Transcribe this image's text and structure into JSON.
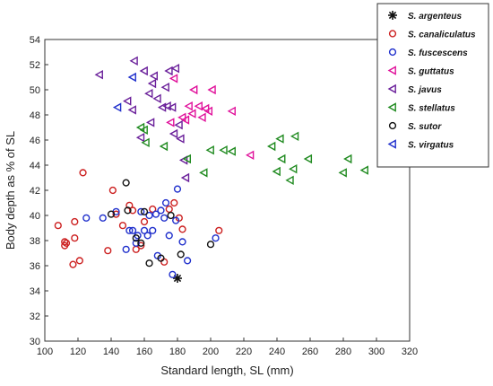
{
  "chart_data": {
    "type": "scatter",
    "title": "",
    "xlabel": "Standard length, SL (mm)",
    "ylabel": "Body depth as % of SL",
    "xlim": [
      100,
      320
    ],
    "ylim": [
      30,
      54
    ],
    "xticks": [
      100,
      120,
      140,
      160,
      180,
      200,
      220,
      240,
      260,
      280,
      300,
      320
    ],
    "yticks": [
      30,
      32,
      34,
      36,
      38,
      40,
      42,
      44,
      46,
      48,
      50,
      52,
      54
    ],
    "grid": false,
    "legend_position": "top-right",
    "series": [
      {
        "name": "S. argenteus",
        "marker": "asterisk",
        "color": "#111111",
        "points": [
          [
            180,
            35.0
          ]
        ]
      },
      {
        "name": "S. canaliculatus",
        "marker": "circle",
        "color": "#cc1f1f",
        "points": [
          [
            108,
            39.2
          ],
          [
            112,
            37.9
          ],
          [
            112,
            37.6
          ],
          [
            113,
            37.8
          ],
          [
            117,
            36.1
          ],
          [
            118,
            38.2
          ],
          [
            118,
            39.5
          ],
          [
            121,
            36.4
          ],
          [
            123,
            43.4
          ],
          [
            138,
            37.2
          ],
          [
            141,
            42.0
          ],
          [
            143,
            40.1
          ],
          [
            147,
            39.2
          ],
          [
            151,
            40.8
          ],
          [
            153,
            40.4
          ],
          [
            155,
            37.3
          ],
          [
            158,
            37.6
          ],
          [
            160,
            39.5
          ],
          [
            165,
            40.5
          ],
          [
            172,
            36.3
          ],
          [
            175,
            40.5
          ],
          [
            178,
            41.0
          ],
          [
            181,
            39.8
          ],
          [
            183,
            38.9
          ],
          [
            205,
            38.8
          ]
        ]
      },
      {
        "name": "S. fuscescens",
        "marker": "circle",
        "color": "#1f2fcc",
        "points": [
          [
            125,
            39.8
          ],
          [
            135,
            39.8
          ],
          [
            143,
            40.3
          ],
          [
            149,
            37.3
          ],
          [
            151,
            38.8
          ],
          [
            153,
            38.8
          ],
          [
            155,
            37.8
          ],
          [
            156,
            38.4
          ],
          [
            158,
            40.3
          ],
          [
            160,
            38.8
          ],
          [
            162,
            38.4
          ],
          [
            163,
            40.0
          ],
          [
            165,
            38.8
          ],
          [
            167,
            40.1
          ],
          [
            168,
            36.8
          ],
          [
            170,
            40.4
          ],
          [
            172,
            39.8
          ],
          [
            173,
            41.0
          ],
          [
            175,
            38.4
          ],
          [
            177,
            35.3
          ],
          [
            179,
            39.6
          ],
          [
            180,
            42.1
          ],
          [
            183,
            37.9
          ],
          [
            186,
            36.4
          ],
          [
            203,
            38.2
          ]
        ]
      },
      {
        "name": "S. guttatus",
        "marker": "triangle-left",
        "color": "#e0109a",
        "points": [
          [
            176,
            47.4
          ],
          [
            178,
            50.9
          ],
          [
            183,
            47.8
          ],
          [
            185,
            47.6
          ],
          [
            187,
            48.7
          ],
          [
            189,
            48.1
          ],
          [
            190,
            50.0
          ],
          [
            193,
            48.7
          ],
          [
            195,
            47.8
          ],
          [
            197,
            48.5
          ],
          [
            199,
            48.3
          ],
          [
            201,
            50.0
          ],
          [
            213,
            48.3
          ],
          [
            224,
            44.8
          ]
        ]
      },
      {
        "name": "S. javus",
        "marker": "triangle-left",
        "color": "#6a1f9a",
        "points": [
          [
            133,
            51.2
          ],
          [
            150,
            49.1
          ],
          [
            153,
            48.4
          ],
          [
            154,
            52.3
          ],
          [
            158,
            46.2
          ],
          [
            160,
            51.5
          ],
          [
            163,
            49.7
          ],
          [
            164,
            47.4
          ],
          [
            165,
            50.5
          ],
          [
            166,
            51.1
          ],
          [
            168,
            49.3
          ],
          [
            171,
            48.6
          ],
          [
            173,
            50.2
          ],
          [
            174,
            48.7
          ],
          [
            175,
            51.5
          ],
          [
            177,
            48.6
          ],
          [
            178,
            46.5
          ],
          [
            179,
            51.7
          ],
          [
            181,
            47.2
          ],
          [
            182,
            46.1
          ],
          [
            184,
            44.4
          ],
          [
            185,
            43.0
          ]
        ]
      },
      {
        "name": "S. stellatus",
        "marker": "triangle-left",
        "color": "#1f8a1f",
        "points": [
          [
            158,
            47.0
          ],
          [
            160,
            46.8
          ],
          [
            161,
            45.8
          ],
          [
            172,
            45.5
          ],
          [
            186,
            44.5
          ],
          [
            196,
            43.4
          ],
          [
            200,
            45.2
          ],
          [
            208,
            45.2
          ],
          [
            213,
            45.1
          ],
          [
            237,
            45.5
          ],
          [
            240,
            43.5
          ],
          [
            242,
            46.1
          ],
          [
            243,
            44.5
          ],
          [
            248,
            42.8
          ],
          [
            250,
            43.7
          ],
          [
            251,
            46.3
          ],
          [
            259,
            44.5
          ],
          [
            280,
            43.4
          ],
          [
            283,
            44.5
          ],
          [
            293,
            43.6
          ],
          [
            305,
            45.9
          ]
        ]
      },
      {
        "name": "S. sutor",
        "marker": "circle",
        "color": "#111111",
        "points": [
          [
            140,
            40.1
          ],
          [
            149,
            42.6
          ],
          [
            150,
            40.4
          ],
          [
            155,
            38.2
          ],
          [
            158,
            37.8
          ],
          [
            160,
            40.3
          ],
          [
            163,
            36.2
          ],
          [
            170,
            36.6
          ],
          [
            176,
            40.0
          ],
          [
            182,
            36.9
          ],
          [
            200,
            37.7
          ]
        ]
      },
      {
        "name": "S. virgatus",
        "marker": "triangle-left",
        "color": "#1f2fcc",
        "points": [
          [
            144,
            48.6
          ],
          [
            153,
            51.0
          ]
        ]
      }
    ]
  }
}
